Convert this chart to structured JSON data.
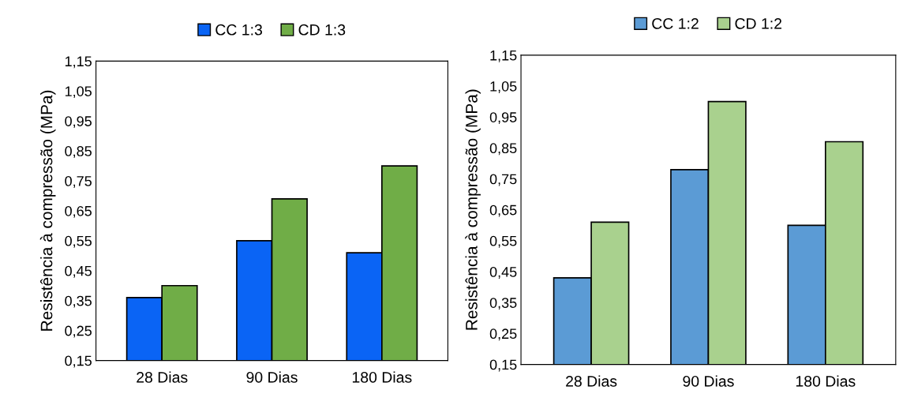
{
  "chart_data": [
    {
      "type": "bar",
      "ylabel": "Resistência à compressão (MPa)",
      "categories": [
        "28 Dias",
        "90 Dias",
        "180 Dias"
      ],
      "series": [
        {
          "name": "CC 1:3",
          "color": "#0a64f5",
          "values": [
            0.36,
            0.55,
            0.51
          ]
        },
        {
          "name": "CD 1:3",
          "color": "#70ad47",
          "values": [
            0.4,
            0.69,
            0.8
          ]
        }
      ],
      "ylim": [
        0.15,
        1.15
      ],
      "yticks": [
        {
          "value": 0.15,
          "label": "0,15"
        },
        {
          "value": 0.25,
          "label": "0,25"
        },
        {
          "value": 0.35,
          "label": "0,35"
        },
        {
          "value": 0.45,
          "label": "0,45"
        },
        {
          "value": 0.55,
          "label": "0,55"
        },
        {
          "value": 0.65,
          "label": "0,65"
        },
        {
          "value": 0.75,
          "label": "0,75"
        },
        {
          "value": 0.85,
          "label": "0,85"
        },
        {
          "value": 0.95,
          "label": "0,95"
        },
        {
          "value": 1.05,
          "label": "1,05"
        },
        {
          "value": 1.15,
          "label": "1,15"
        }
      ],
      "grid": false,
      "legend": "top"
    },
    {
      "type": "bar",
      "ylabel": "Resistência à compressão (MPa)",
      "categories": [
        "28 Dias",
        "90 Dias",
        "180 Dias"
      ],
      "series": [
        {
          "name": "CC 1:2",
          "color": "#5b9bd5",
          "values": [
            0.43,
            0.78,
            0.6
          ]
        },
        {
          "name": "CD 1:2",
          "color": "#a9d18e",
          "values": [
            0.61,
            1.0,
            0.87
          ]
        }
      ],
      "ylim": [
        0.15,
        1.15
      ],
      "yticks": [
        {
          "value": 0.15,
          "label": "0,15"
        },
        {
          "value": 0.25,
          "label": "0,25"
        },
        {
          "value": 0.35,
          "label": "0,35"
        },
        {
          "value": 0.45,
          "label": "0,45"
        },
        {
          "value": 0.55,
          "label": "0,55"
        },
        {
          "value": 0.65,
          "label": "0,65"
        },
        {
          "value": 0.75,
          "label": "0,75"
        },
        {
          "value": 0.85,
          "label": "0,85"
        },
        {
          "value": 0.95,
          "label": "0,95"
        },
        {
          "value": 1.05,
          "label": "1,05"
        },
        {
          "value": 1.15,
          "label": "1,15"
        }
      ],
      "grid": false,
      "legend": "top"
    }
  ]
}
